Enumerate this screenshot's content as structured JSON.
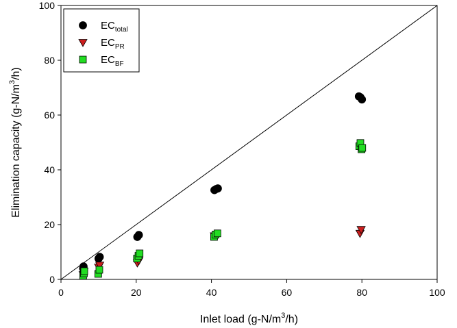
{
  "chart_data": {
    "type": "scatter",
    "title": "",
    "xlabel": {
      "main": "Inlet load (g-N/m",
      "sup": "3",
      "tail": "/h)"
    },
    "ylabel": {
      "main": "Elimination capacity (g-N/m",
      "sup": "3",
      "tail": "/h)"
    },
    "xlim": [
      0,
      100
    ],
    "ylim": [
      0,
      100
    ],
    "xticks": [
      "0",
      "20",
      "40",
      "60",
      "80",
      "100"
    ],
    "yticks": [
      "0",
      "20",
      "40",
      "60",
      "80",
      "100"
    ],
    "grid": false,
    "legend_position": "top-left",
    "reference_line": {
      "from": [
        0,
        0
      ],
      "to": [
        100,
        100
      ],
      "color": "#000000"
    },
    "series": [
      {
        "name": {
          "main": "EC",
          "sub": "total"
        },
        "marker": "circle",
        "color": "#000000",
        "stroke": "#000000",
        "x": [
          5.9,
          6.0,
          6.1,
          10.0,
          10.3,
          20.3,
          20.7,
          40.8,
          41.3,
          41.7,
          79.2,
          79.6,
          80.0
        ],
        "y": [
          4.0,
          4.7,
          3.2,
          7.6,
          8.2,
          15.5,
          16.2,
          32.6,
          33.0,
          33.2,
          66.8,
          66.5,
          65.7
        ]
      },
      {
        "name": {
          "main": "EC",
          "sub": "PR"
        },
        "marker": "triangle-down",
        "color": "#cc1f1f",
        "stroke": "#000000",
        "x": [
          5.9,
          6.1,
          10.0,
          10.3,
          20.3,
          20.7,
          40.8,
          41.3,
          79.5,
          79.8
        ],
        "y": [
          1.7,
          2.8,
          4.5,
          5.2,
          6.0,
          6.8,
          15.9,
          16.5,
          16.8,
          18.2
        ]
      },
      {
        "name": {
          "main": "EC",
          "sub": "BF"
        },
        "marker": "square",
        "color": "#22dd22",
        "stroke": "#000000",
        "x": [
          5.9,
          6.1,
          6.2,
          9.9,
          10.2,
          20.2,
          20.6,
          20.9,
          40.7,
          41.1,
          41.6,
          79.3,
          79.6,
          79.9,
          80.1
        ],
        "y": [
          1.3,
          2.2,
          3.0,
          2.0,
          3.5,
          7.6,
          8.6,
          9.5,
          15.5,
          16.3,
          16.8,
          48.6,
          49.8,
          47.5,
          48.0
        ]
      }
    ]
  }
}
